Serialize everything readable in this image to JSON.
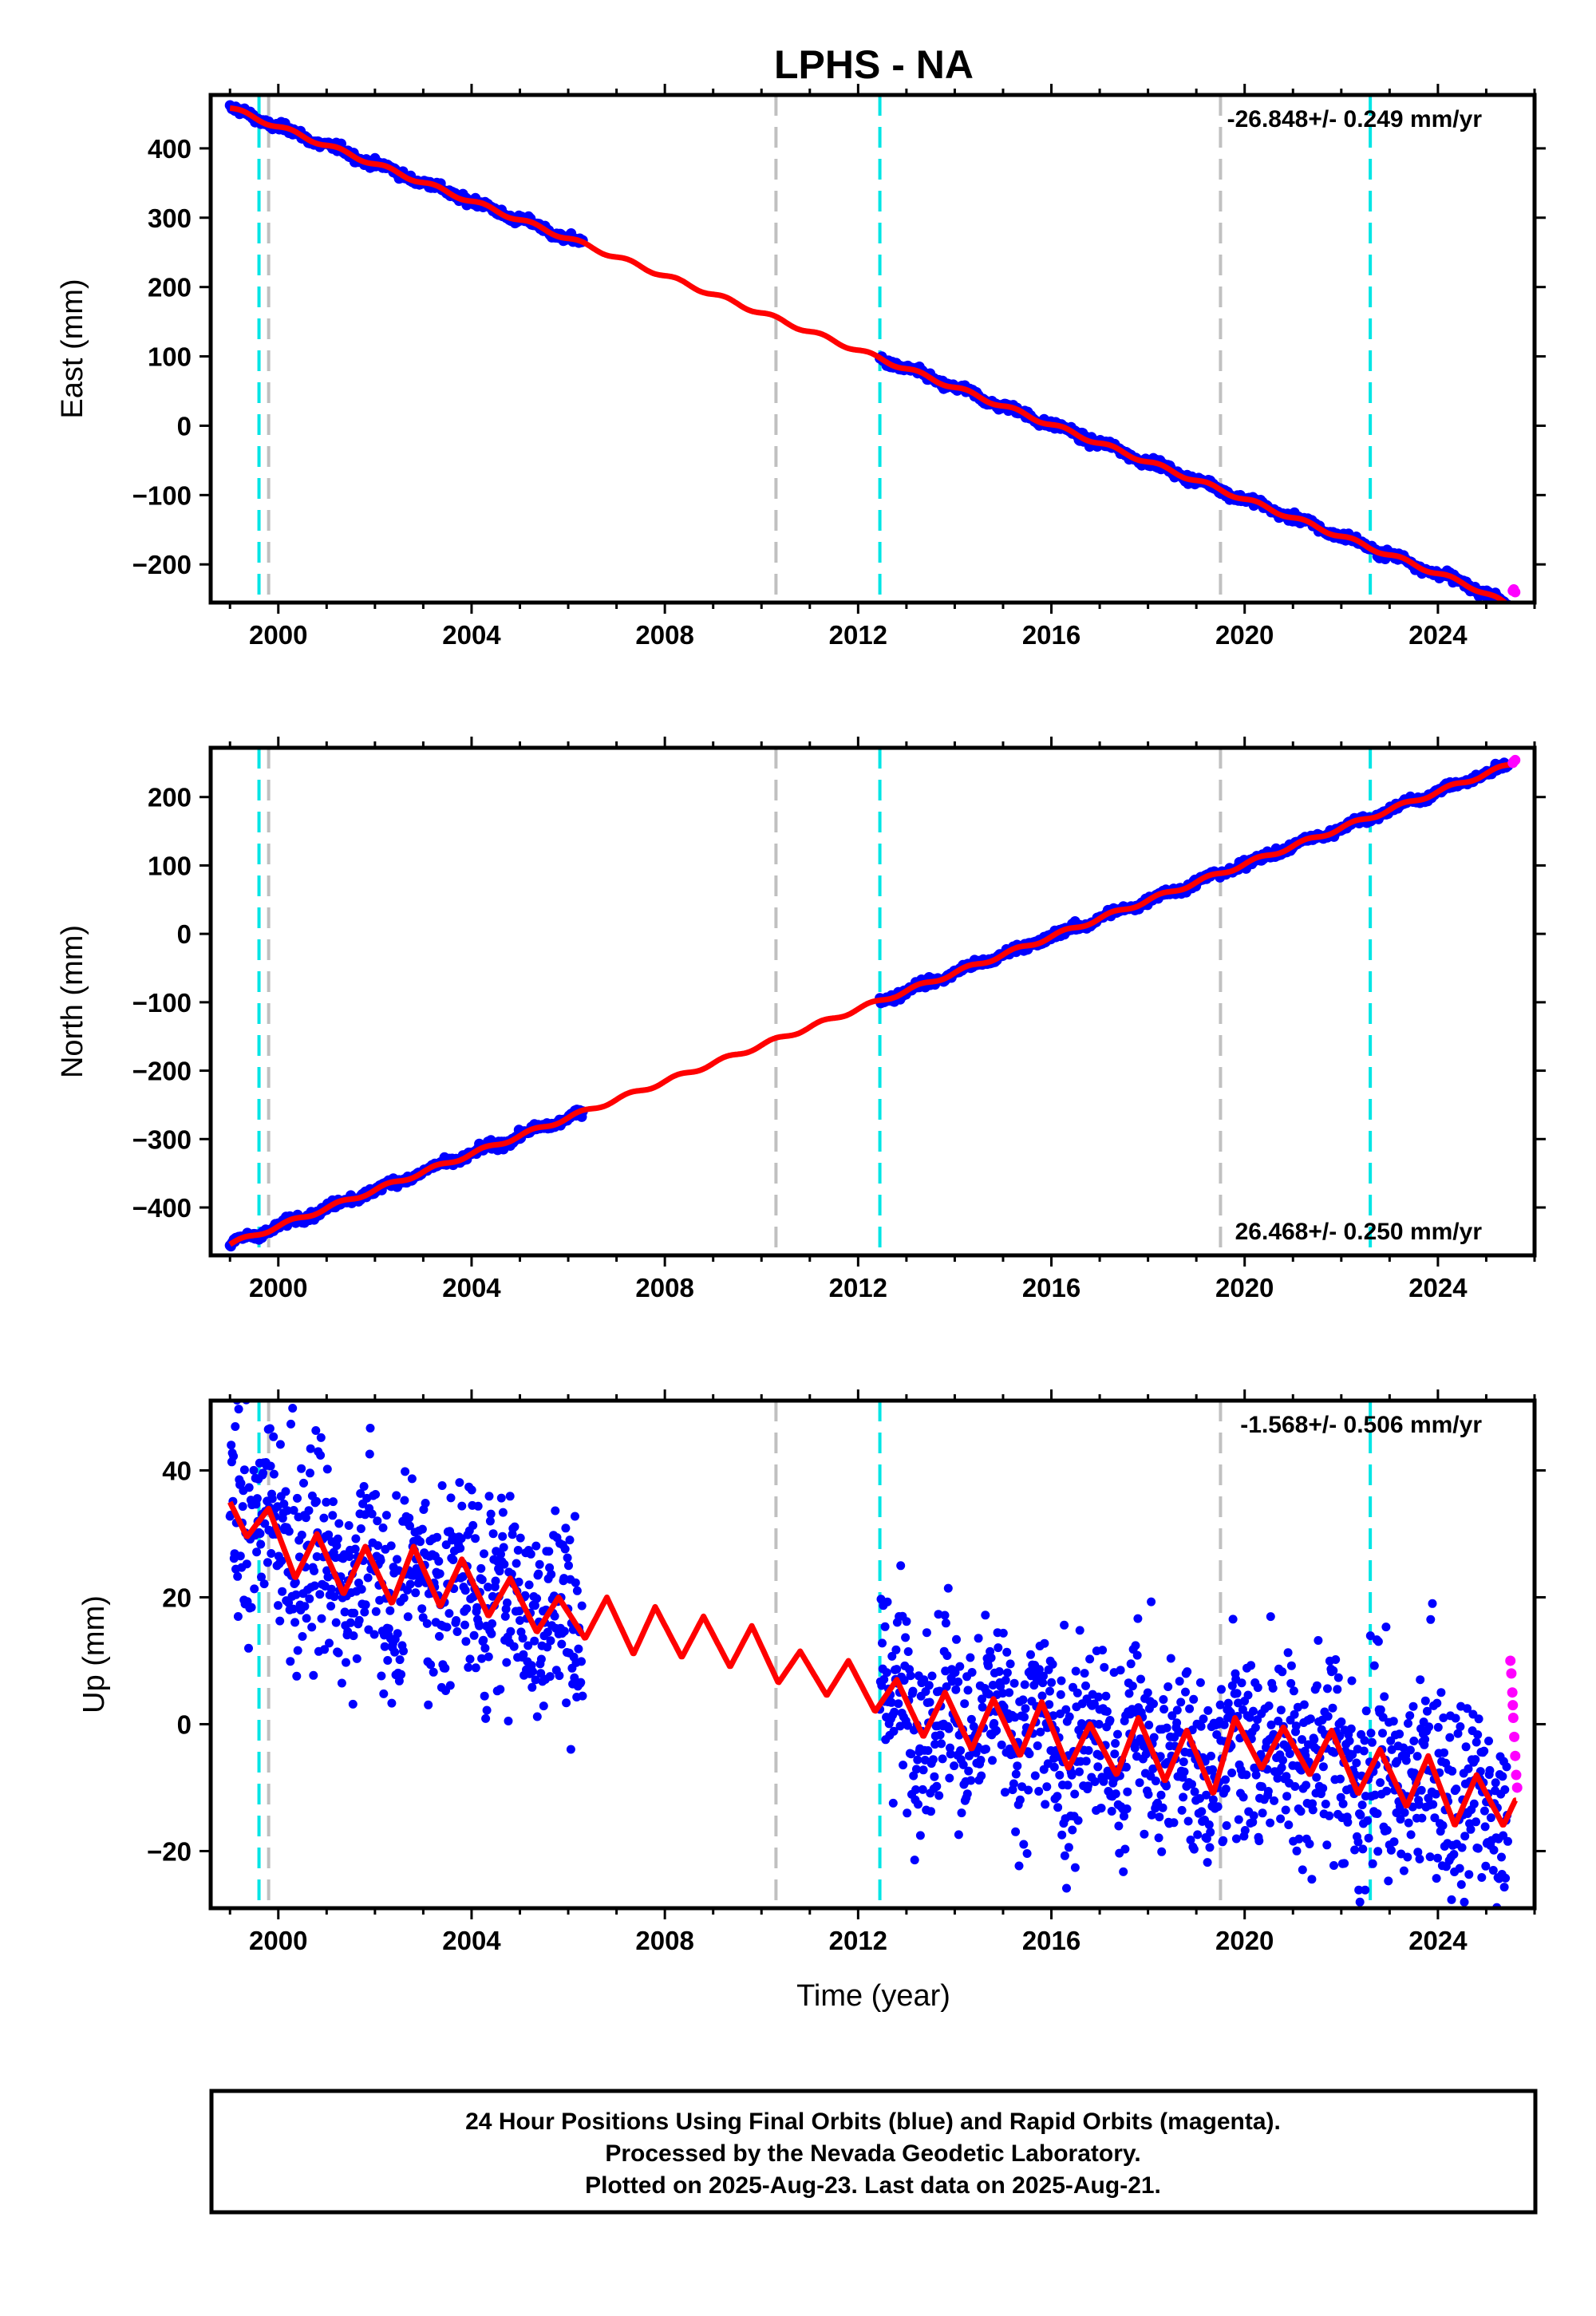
{
  "title": "LPHS - NA",
  "colors": {
    "final_orbits": "#0000ff",
    "rapid_orbits": "#ff00ff",
    "model": "#ff0000",
    "equipment_change": "#00e5e5",
    "other_event": "#c0c0c0"
  },
  "events": {
    "cyan": [
      1999.6,
      2012.45,
      2022.6
    ],
    "gray": [
      1999.8,
      2010.3,
      2019.5
    ]
  },
  "chart_data": [
    {
      "type": "scatter",
      "ylabel": "East (mm)",
      "xlim": [
        1998.6,
        2026.0
      ],
      "ylim": [
        -255,
        477
      ],
      "xticks": [
        2000,
        2004,
        2008,
        2012,
        2016,
        2020,
        2024
      ],
      "yticks": [
        -200,
        -100,
        0,
        100,
        200,
        300,
        400
      ],
      "rate": "-26.848+/- 0.249 mm/yr",
      "rate_position": "top-right",
      "model": {
        "x0": 1999.0,
        "y0": 458,
        "slope": -26.848,
        "annual_amplitude": 3,
        "end_drop": [
          2024.5,
          2025.6,
          -10
        ]
      },
      "final_segments": [
        [
          1999.0,
          2006.3
        ],
        [
          2012.45,
          2025.45
        ]
      ],
      "final_scatter_mm": 3,
      "rapid": {
        "x": [
          2025.55,
          2025.57,
          2025.6
        ],
        "y": [
          -238,
          -236,
          -240
        ]
      }
    },
    {
      "type": "scatter",
      "ylabel": "North (mm)",
      "xlim": [
        1998.6,
        2026.0
      ],
      "ylim": [
        -470,
        272
      ],
      "xticks": [
        2000,
        2004,
        2008,
        2012,
        2016,
        2020,
        2024
      ],
      "yticks": [
        -400,
        -300,
        -200,
        -100,
        0,
        100,
        200
      ],
      "rate": "26.468+/- 0.250 mm/yr",
      "rate_position": "bottom-right",
      "model": {
        "x0": 1999.0,
        "y0": -454,
        "slope": 26.468,
        "annual_amplitude": 3,
        "end_drop": [
          2024.5,
          2025.6,
          0
        ]
      },
      "final_segments": [
        [
          1999.0,
          2006.3
        ],
        [
          2012.45,
          2025.45
        ]
      ],
      "final_scatter_mm": 3,
      "rapid": {
        "x": [
          2025.55,
          2025.57,
          2025.6
        ],
        "y": [
          250,
          252,
          254
        ]
      }
    },
    {
      "type": "scatter",
      "ylabel": "Up (mm)",
      "xlabel": "Time (year)",
      "xlim": [
        1998.6,
        2026.0
      ],
      "ylim": [
        -29,
        51
      ],
      "xticks": [
        2000,
        2004,
        2008,
        2012,
        2016,
        2020,
        2024
      ],
      "yticks": [
        -20,
        0,
        20,
        40
      ],
      "rate": "-1.568+/- 0.506 mm/yr",
      "rate_position": "top-right",
      "model_points": {
        "x": [
          1999.0,
          1999.35,
          1999.8,
          2000.35,
          2000.8,
          2001.35,
          2001.8,
          2002.35,
          2002.8,
          2003.35,
          2003.8,
          2004.35,
          2004.8,
          2005.35,
          2005.8,
          2006.35,
          2006.8,
          2007.35,
          2007.8,
          2008.35,
          2008.8,
          2009.35,
          2009.8,
          2010.35,
          2010.8,
          2011.35,
          2011.8,
          2012.35,
          2012.8,
          2013.35,
          2013.8,
          2014.35,
          2014.8,
          2015.35,
          2015.8,
          2016.35,
          2016.8,
          2017.35,
          2017.8,
          2018.35,
          2018.8,
          2019.35,
          2019.8,
          2020.35,
          2020.8,
          2021.35,
          2021.8,
          2022.35,
          2022.8,
          2023.35,
          2023.8,
          2024.35,
          2024.8,
          2025.35,
          2025.6
        ],
        "y": [
          35,
          29.5,
          34,
          23,
          30,
          20.5,
          28,
          19,
          28,
          18.5,
          26,
          17,
          23,
          14.5,
          20,
          13.5,
          20,
          11,
          18.5,
          10.5,
          17,
          9,
          15.5,
          6.5,
          11.5,
          4.5,
          10,
          2,
          7,
          -2,
          5,
          -4,
          4,
          -5,
          3.5,
          -7,
          0,
          -8,
          1,
          -9,
          -1,
          -11,
          1,
          -7,
          -0.5,
          -8,
          -1,
          -11,
          -4,
          -13,
          -5,
          -16,
          -8,
          -16,
          -12
        ]
      },
      "final_segments": [
        [
          1999.0,
          2006.3
        ],
        [
          2012.45,
          2025.45
        ]
      ],
      "final_scatter_mm": 8,
      "rapid": {
        "x": [
          2025.5,
          2025.52,
          2025.54,
          2025.56,
          2025.58,
          2025.6,
          2025.62,
          2025.64,
          2025.55
        ],
        "y": [
          10,
          8,
          5,
          1,
          -2,
          -5,
          -8,
          -10,
          3
        ]
      }
    }
  ],
  "footer": {
    "line1": "24 Hour Positions Using Final Orbits (blue) and Rapid Orbits (magenta).",
    "line2": "Processed by the Nevada Geodetic Laboratory.",
    "line3": "Plotted on 2025-Aug-23. Last data on 2025-Aug-21."
  }
}
